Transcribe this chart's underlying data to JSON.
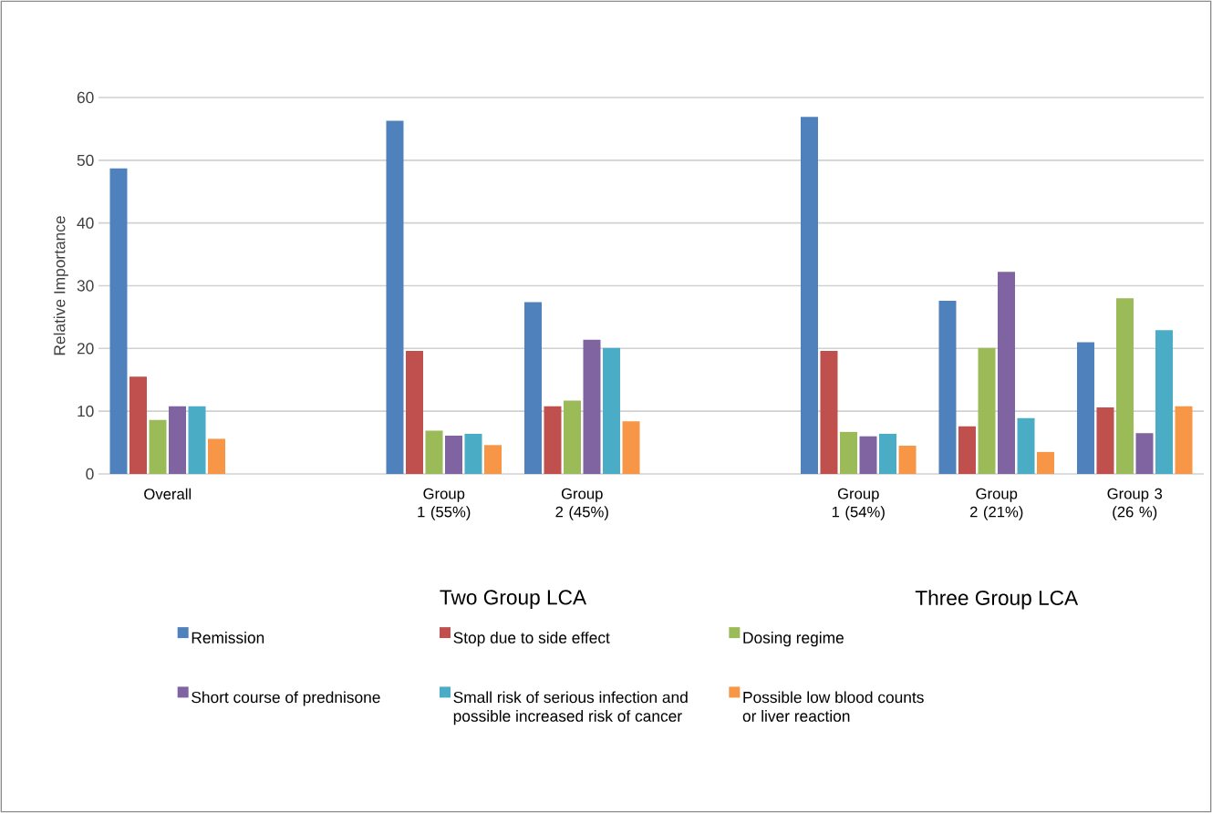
{
  "chart_data": {
    "type": "bar",
    "ylabel": "Relative Importance",
    "categories": [
      "Overall",
      null,
      "Group 1 (55%)",
      "Group 2 (45%)",
      null,
      "Group 1 (54%)",
      "Group 2 (21%)",
      "Group 3 (26 %)"
    ],
    "series": [
      {
        "name": "Remission",
        "color": "#4f81bd",
        "values": [
          48.7,
          null,
          56.3,
          27.4,
          null,
          56.9,
          27.6,
          21.0
        ]
      },
      {
        "name": "Stop due to side effect",
        "color": "#c0504d",
        "values": [
          15.5,
          null,
          19.6,
          10.8,
          null,
          19.6,
          7.6,
          10.6
        ]
      },
      {
        "name": "Dosing regime",
        "color": "#9bbb59",
        "values": [
          8.6,
          null,
          6.9,
          11.7,
          null,
          6.7,
          20.1,
          28.0
        ]
      },
      {
        "name": "Short course of prednisone",
        "color": "#8064a2",
        "values": [
          10.8,
          null,
          6.1,
          21.4,
          null,
          6.0,
          32.2,
          6.5
        ]
      },
      {
        "name": "Small risk of serious infection and possible increased risk of cancer",
        "color": "#4bacc6",
        "values": [
          10.8,
          null,
          6.4,
          20.1,
          null,
          6.4,
          8.9,
          22.9
        ]
      },
      {
        "name": "Possible low blood counts or liver reaction",
        "color": "#f79646",
        "values": [
          5.6,
          null,
          4.6,
          8.4,
          null,
          4.5,
          3.5,
          10.8
        ]
      }
    ],
    "annotations": [
      "Two Group LCA",
      "Three Group LCA"
    ],
    "ylim": [
      0,
      60
    ],
    "yticks": [
      0,
      10,
      20,
      30,
      40,
      50,
      60
    ],
    "grid": "y",
    "legend": "bottom"
  }
}
